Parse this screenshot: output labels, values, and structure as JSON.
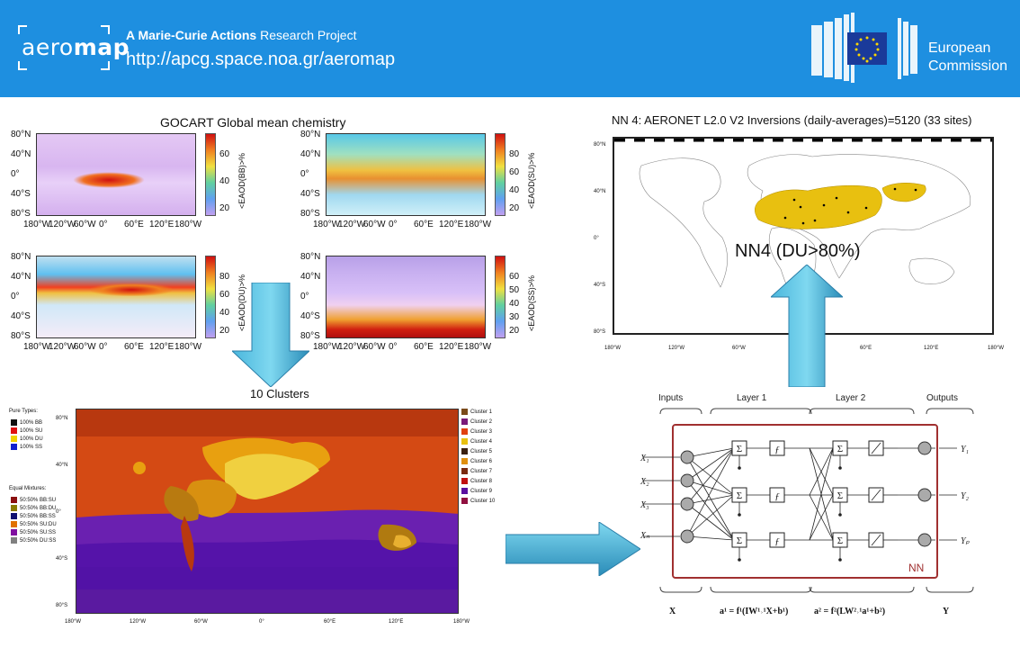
{
  "header": {
    "logo": {
      "part1": "aero",
      "part2": "map"
    },
    "tagline_bold": "A Marie-Curie Actions",
    "tagline_rest": " Research Project",
    "url": "http://apcg.space.noa.gr/aeromap",
    "ec_line1": "European",
    "ec_line2": "Commission"
  },
  "gocart": {
    "title": "GOCART Global mean chemistry",
    "lat_ticks": [
      "80°N",
      "40°N",
      "0°",
      "40°S",
      "80°S"
    ],
    "lon_ticks": [
      "180°W",
      "120°W",
      "60°W",
      "0°",
      "60°E",
      "120°E",
      "180°W"
    ],
    "panels": [
      {
        "label": "<EAOD(BB)>%",
        "ticks": [
          "60",
          "40",
          "20"
        ]
      },
      {
        "label": "<EAOD(SU)>%",
        "ticks": [
          "80",
          "60",
          "40",
          "20"
        ]
      },
      {
        "label": "<EAOD(DU)>%",
        "ticks": [
          "80",
          "60",
          "40",
          "20"
        ]
      },
      {
        "label": "<EAOD(SS)>%",
        "ticks": [
          "60",
          "50",
          "40",
          "30",
          "20"
        ]
      }
    ]
  },
  "nn4": {
    "title": "NN 4: AERONET L2.0 V2 Inversions (daily-averages)=5120 (33 sites)",
    "overlay": "NN4 (DU>80%)",
    "lat_ticks": [
      "80°N",
      "40°N",
      "0°",
      "40°S",
      "80°S"
    ],
    "lon_ticks": [
      "180°W",
      "120°W",
      "60°W",
      "0°",
      "60°E",
      "120°E",
      "180°W"
    ]
  },
  "clusters": {
    "title": "10 Clusters",
    "lat_ticks": [
      "80°N",
      "40°N",
      "0°",
      "40°S",
      "80°S"
    ],
    "lon_ticks": [
      "180°W",
      "120°W",
      "60°W",
      "0°",
      "60°E",
      "120°E",
      "180°W"
    ],
    "pure_title": "Pure Types:",
    "pure": [
      {
        "label": "100% BB",
        "color": "#111111"
      },
      {
        "label": "100% SU",
        "color": "#e01010"
      },
      {
        "label": "100% DU",
        "color": "#f0d000"
      },
      {
        "label": "100% SS",
        "color": "#1020d0"
      }
    ],
    "mix_title": "Equal Mixtures:",
    "mixtures": [
      {
        "label": "50:50% BB:SU",
        "color": "#8b1010"
      },
      {
        "label": "50:50% BB:DU",
        "color": "#8a7a00"
      },
      {
        "label": "50:50% BB:SS",
        "color": "#101070"
      },
      {
        "label": "50:50% SU:DU",
        "color": "#e07000"
      },
      {
        "label": "50:50% SU:SS",
        "color": "#8010a0"
      },
      {
        "label": "50:50% DU:SS",
        "color": "#808080"
      }
    ],
    "legend": [
      {
        "label": "Cluster 1",
        "color": "#7a4a1a"
      },
      {
        "label": "Cluster 2",
        "color": "#7a1a7a"
      },
      {
        "label": "Cluster 3",
        "color": "#e04010"
      },
      {
        "label": "Cluster 4",
        "color": "#e8c010"
      },
      {
        "label": "Cluster 5",
        "color": "#3a2010"
      },
      {
        "label": "Cluster 6",
        "color": "#e09010"
      },
      {
        "label": "Cluster 7",
        "color": "#7a2a10"
      },
      {
        "label": "Cluster 8",
        "color": "#c01010"
      },
      {
        "label": "Cluster 9",
        "color": "#5a10a0"
      },
      {
        "label": "Cluster 10",
        "color": "#901040"
      }
    ]
  },
  "nn": {
    "inputs": "Inputs",
    "layer1": "Layer 1",
    "layer2": "Layer 2",
    "outputs": "Outputs",
    "x_inputs": [
      "X₁",
      "X₂",
      "X₃",
      "Xₙ"
    ],
    "y_outputs": [
      "Y₁",
      "Y₂",
      "Yₚ"
    ],
    "nn_label": "NN",
    "bottom_x": "X",
    "eq1": "a¹ = f¹(IW¹˒¹X+b¹)",
    "eq2": "a² = f²(LW²˒¹a¹+b²)",
    "bottom_y": "Y"
  }
}
